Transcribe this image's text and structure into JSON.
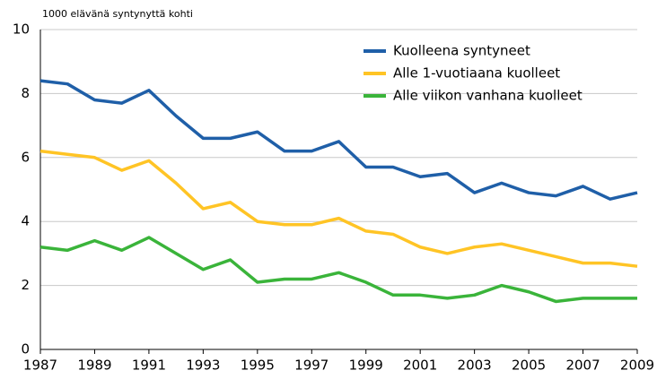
{
  "chart_data": {
    "type": "line",
    "y_axis_label": "1000 elävänä syntynyttä kohti",
    "x": [
      1987,
      1988,
      1989,
      1990,
      1991,
      1992,
      1993,
      1994,
      1995,
      1996,
      1997,
      1998,
      1999,
      2000,
      2001,
      2002,
      2003,
      2004,
      2005,
      2006,
      2007,
      2008,
      2009
    ],
    "series": [
      {
        "name": "Kuolleena syntyneet",
        "color": "#1f5fa8",
        "values": [
          8.4,
          8.3,
          7.8,
          7.7,
          8.1,
          7.3,
          6.6,
          6.6,
          6.8,
          6.2,
          6.2,
          6.5,
          5.7,
          5.7,
          5.4,
          5.5,
          4.9,
          5.2,
          4.9,
          4.8,
          5.1,
          4.7,
          4.9
        ]
      },
      {
        "name": "Alle 1-vuotiaana kuolleet",
        "color": "#ffc425",
        "values": [
          6.2,
          6.1,
          6.0,
          5.6,
          5.9,
          5.2,
          4.4,
          4.6,
          4.0,
          3.9,
          3.9,
          4.1,
          3.7,
          3.6,
          3.2,
          3.0,
          3.2,
          3.3,
          3.1,
          2.9,
          2.7,
          2.7,
          2.6
        ]
      },
      {
        "name": "Alle viikon vanhana kuolleet",
        "color": "#3ab43a",
        "values": [
          3.2,
          3.1,
          3.4,
          3.1,
          3.5,
          3.0,
          2.5,
          2.8,
          2.1,
          2.2,
          2.2,
          2.4,
          2.1,
          1.7,
          1.7,
          1.6,
          1.7,
          2.0,
          1.8,
          1.5,
          1.6,
          1.6,
          1.6
        ]
      }
    ],
    "xlim": [
      1987,
      2009
    ],
    "xticks": [
      1987,
      1989,
      1991,
      1993,
      1995,
      1997,
      1999,
      2001,
      2003,
      2005,
      2007,
      2009
    ],
    "ylim": [
      0,
      10
    ],
    "yticks": [
      0,
      2,
      4,
      6,
      8,
      10
    ],
    "grid": true,
    "legend_position": "upper right"
  }
}
